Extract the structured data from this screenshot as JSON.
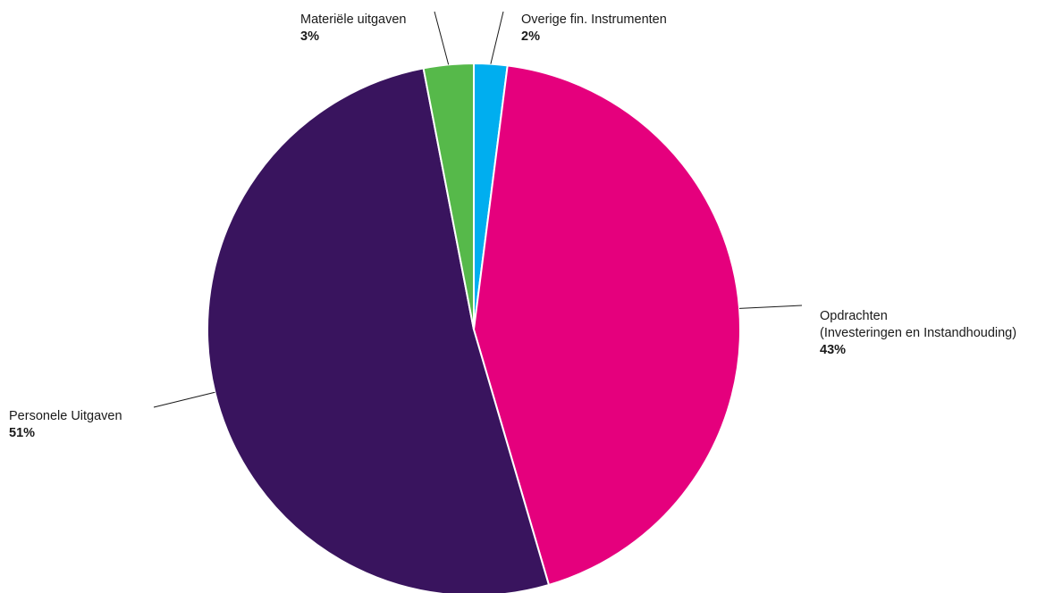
{
  "chart_data": {
    "type": "pie",
    "title": "",
    "slices": [
      {
        "label": "Overige fin. Instrumenten",
        "value": 2,
        "percent_label": "2%",
        "color": "#00AEEF"
      },
      {
        "label": "Opdrachten (Investeringen en Instandhouding)",
        "label_lines": [
          "Opdrachten",
          "(Investeringen en Instandhouding)"
        ],
        "value": 43,
        "percent_label": "43%",
        "color": "#E5007D"
      },
      {
        "label": "Personele Uitgaven",
        "value": 51,
        "percent_label": "51%",
        "color": "#39145E"
      },
      {
        "label": "Materiële uitgaven",
        "value": 3,
        "percent_label": "3%",
        "color": "#56B94A"
      }
    ]
  }
}
